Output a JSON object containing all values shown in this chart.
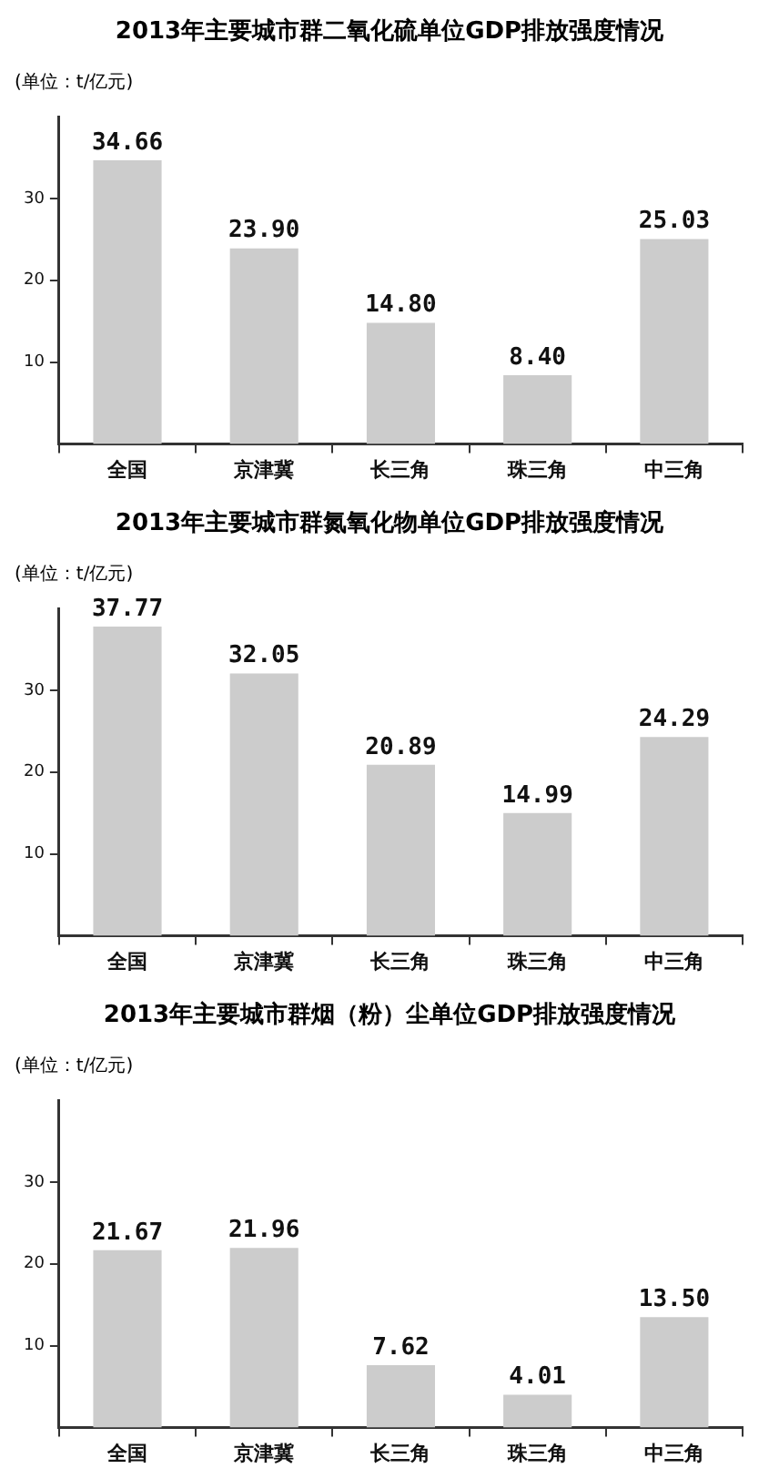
{
  "chart_data": [
    {
      "type": "bar",
      "title": "2013年主要城市群二氧化硫单位GDP排放强度情况",
      "ylabel": "(单位：t/亿元)",
      "categories": [
        "全国",
        "京津冀",
        "长三角",
        "珠三角",
        "中三角"
      ],
      "values": [
        34.66,
        23.9,
        14.8,
        8.4,
        25.03
      ],
      "value_labels": [
        "34.66",
        "23.90",
        "14.80",
        "8.40",
        "25.03"
      ],
      "color": "#cccccc",
      "ylim": [
        0,
        40
      ],
      "yticks": [
        10,
        20,
        30
      ],
      "grid": false,
      "legend": false
    },
    {
      "type": "bar",
      "title": "2013年主要城市群氮氧化物单位GDP排放强度情况",
      "ylabel": "(单位：t/亿元)",
      "categories": [
        "全国",
        "京津冀",
        "长三角",
        "珠三角",
        "中三角"
      ],
      "values": [
        37.77,
        32.05,
        20.89,
        14.99,
        24.29
      ],
      "value_labels": [
        "37.77",
        "32.05",
        "20.89",
        "14.99",
        "24.29"
      ],
      "color": "#cccccc",
      "ylim": [
        0,
        40
      ],
      "yticks": [
        10,
        20,
        30
      ],
      "grid": false,
      "legend": false
    },
    {
      "type": "bar",
      "title": "2013年主要城市群烟（粉）尘单位GDP排放强度情况",
      "ylabel": "(单位：t/亿元)",
      "categories": [
        "全国",
        "京津冀",
        "长三角",
        "珠三角",
        "中三角"
      ],
      "values": [
        21.67,
        21.96,
        7.62,
        4.01,
        13.5
      ],
      "value_labels": [
        "21.67",
        "21.96",
        "7.62",
        "4.01",
        "13.50"
      ],
      "color": "#cccccc",
      "ylim": [
        0,
        40
      ],
      "yticks": [
        10,
        20,
        30
      ],
      "grid": false,
      "legend": false
    }
  ]
}
